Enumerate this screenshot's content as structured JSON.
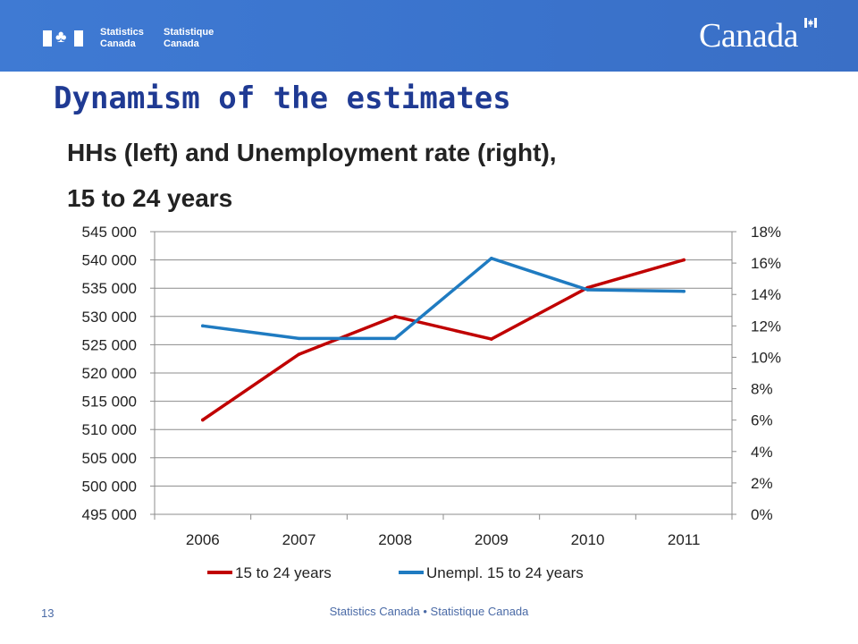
{
  "header": {
    "agency_en_line1": "Statistics",
    "agency_en_line2": "Canada",
    "agency_fr_line1": "Statistique",
    "agency_fr_line2": "Canada",
    "wordmark": "Canada"
  },
  "slide": {
    "title": "Dynamism of the estimates",
    "subtitle_line1": "HHs (left) and Unemployment rate (right),",
    "subtitle_line2": "15 to 24 years"
  },
  "footer": {
    "text": "Statistics Canada • Statistique Canada",
    "page_number": "13"
  },
  "colors": {
    "banner": "#3b74cc",
    "title": "#1f3a93",
    "series1": "#c00000",
    "series2": "#1f7bc1"
  },
  "chart_data": {
    "type": "line",
    "x": [
      "2006",
      "2007",
      "2008",
      "2009",
      "2010",
      "2011"
    ],
    "series": [
      {
        "name": "15 to 24 years",
        "axis": "left",
        "values": [
          511700,
          523300,
          530000,
          526000,
          535100,
          540000
        ]
      },
      {
        "name": "Unempl. 15 to 24 years",
        "axis": "right",
        "values": [
          12.0,
          11.2,
          11.2,
          16.3,
          14.3,
          14.2
        ]
      }
    ],
    "y_left": {
      "min": 495000,
      "max": 545000,
      "ticks": [
        {
          "value": 495000,
          "label": "495 000"
        },
        {
          "value": 500000,
          "label": "500 000"
        },
        {
          "value": 505000,
          "label": "505 000"
        },
        {
          "value": 510000,
          "label": "510 000"
        },
        {
          "value": 515000,
          "label": "515 000"
        },
        {
          "value": 520000,
          "label": "520 000"
        },
        {
          "value": 525000,
          "label": "525 000"
        },
        {
          "value": 530000,
          "label": "530 000"
        },
        {
          "value": 535000,
          "label": "535 000"
        },
        {
          "value": 540000,
          "label": "540 000"
        },
        {
          "value": 545000,
          "label": "545 000"
        }
      ]
    },
    "y_right": {
      "min": 0,
      "max": 18,
      "ticks": [
        {
          "value": 0,
          "label": "0%"
        },
        {
          "value": 2,
          "label": "2%"
        },
        {
          "value": 4,
          "label": "4%"
        },
        {
          "value": 6,
          "label": "6%"
        },
        {
          "value": 8,
          "label": "8%"
        },
        {
          "value": 10,
          "label": "10%"
        },
        {
          "value": 12,
          "label": "12%"
        },
        {
          "value": 14,
          "label": "14%"
        },
        {
          "value": 16,
          "label": "16%"
        },
        {
          "value": 18,
          "label": "18%"
        }
      ]
    },
    "grid": true,
    "legend": "bottom"
  }
}
